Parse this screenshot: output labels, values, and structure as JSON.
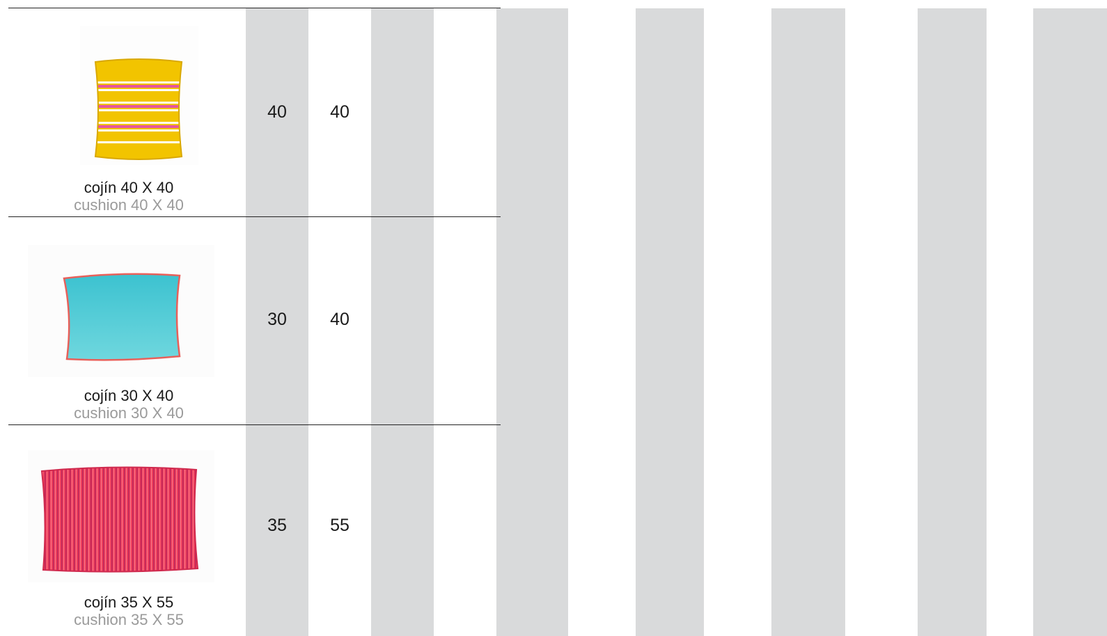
{
  "colors": {
    "band": "#d9dadb",
    "rule": "#222222",
    "text_es": "#1a1a1a",
    "text_en": "#9a9a9a",
    "yellow": "#f2c400",
    "turquoise": "#40c8d4",
    "coral": "#ee3d5a"
  },
  "products": [
    {
      "image": "yellow-striped-cushion",
      "label_es": "cojín  40 X 40",
      "label_en": "cushion  40 X 40",
      "width": "40",
      "height": "40"
    },
    {
      "image": "turquoise-velvet-cushion",
      "label_es": "cojín  30 X 40",
      "label_en": "cushion  30 X 40",
      "width": "30",
      "height": "40"
    },
    {
      "image": "coral-pinstripe-cushion",
      "label_es": "cojín  35 X 55",
      "label_en": "cushion  35 X 55",
      "width": "35",
      "height": "55"
    }
  ]
}
